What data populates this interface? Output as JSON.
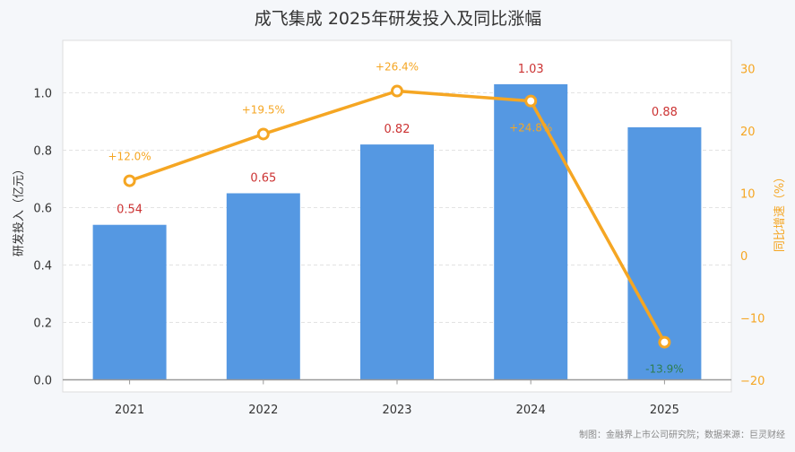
{
  "chart_data": {
    "type": "bar",
    "title": "成飞集成 2025年研发投入及同比涨幅",
    "categories": [
      "2021",
      "2022",
      "2023",
      "2024",
      "2025"
    ],
    "series": [
      {
        "type": "bar",
        "values": [
          0.54,
          0.65,
          0.82,
          1.03,
          0.88
        ],
        "value_labels": [
          "0.54",
          "0.65",
          "0.82",
          "1.03",
          "0.88"
        ],
        "color": "#5598e2"
      },
      {
        "type": "line",
        "axis": "right",
        "values": [
          12.0,
          19.5,
          26.4,
          24.8,
          -13.9
        ],
        "value_labels": [
          "+12.0%",
          "+19.5%",
          "+26.4%",
          "+24.8%",
          "-13.9%"
        ],
        "color": "#f5a623",
        "negative_label_color": "#2e7d4f"
      }
    ],
    "ylabel": "研发投入（亿元）",
    "ylim": [
      0,
      1.15
    ],
    "yticks": [
      "0.0",
      "0.2",
      "0.4",
      "0.6",
      "0.8",
      "1.0"
    ],
    "y2label": "同比增速（%）",
    "y2lim": [
      -20,
      33
    ],
    "y2ticks": [
      "−20",
      "−10",
      "0",
      "10",
      "20",
      "30"
    ],
    "grid": true,
    "bar_label_color": "#cc3333"
  },
  "credit": "制图：金融界上市公司研究院；数据来源：巨灵财经"
}
